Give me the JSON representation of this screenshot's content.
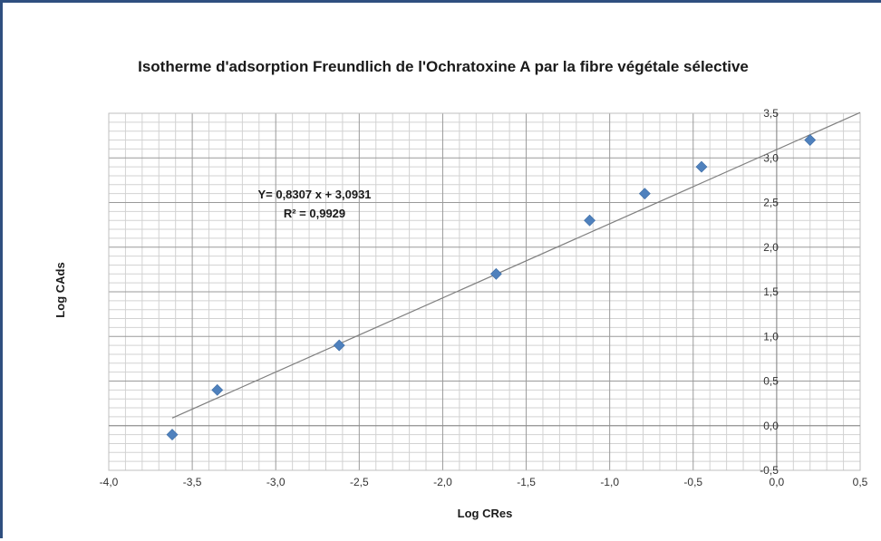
{
  "chart_data": {
    "type": "scatter",
    "title": "Isotherme  d'adsorption Freundlich de l'Ochratoxine A par la fibre végétale sélective",
    "xlabel": "Log CRes",
    "ylabel": "Log CAds",
    "xlim": [
      -4.0,
      0.5
    ],
    "ylim": [
      -0.5,
      3.5
    ],
    "x_ticks": [
      "-4,0",
      "-3,5",
      "-3,0",
      "-2,5",
      "-2,0",
      "-1,5",
      "-1,0",
      "-0,5",
      "0,0",
      "0,5"
    ],
    "y_ticks": [
      "-0,5",
      "0,0",
      "0,5",
      "1,0",
      "1,5",
      "2,0",
      "2,5",
      "3,0",
      "3,5"
    ],
    "grid": true,
    "marker_color": "#4f81bd",
    "line_color": "#7f7f7f",
    "points": [
      {
        "x": -3.62,
        "y": -0.1
      },
      {
        "x": -3.35,
        "y": 0.4
      },
      {
        "x": -2.62,
        "y": 0.9
      },
      {
        "x": -1.68,
        "y": 1.7
      },
      {
        "x": -1.12,
        "y": 2.3
      },
      {
        "x": -0.79,
        "y": 2.6
      },
      {
        "x": -0.45,
        "y": 2.9
      },
      {
        "x": 0.2,
        "y": 3.2
      }
    ],
    "trendline": {
      "slope": 0.8307,
      "intercept": 3.0931,
      "x_start": -3.62,
      "x_end": 0.5
    },
    "annotations": {
      "equation": "Y= 0,8307 x + 3,0931",
      "r_squared": "R² = 0,9929"
    }
  }
}
